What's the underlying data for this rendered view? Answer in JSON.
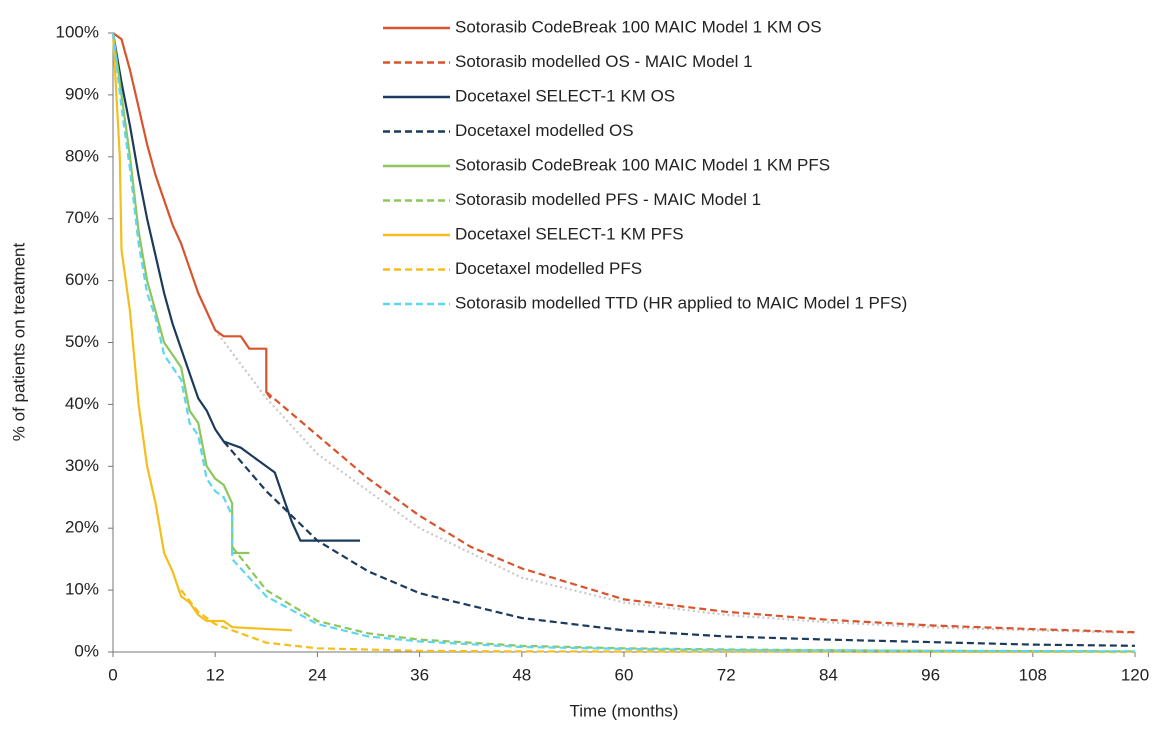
{
  "chart_data": {
    "type": "line",
    "x_label": "Time (months)",
    "y_label": "% of patients on treatment",
    "xlim": [
      0,
      120
    ],
    "xticks": [
      0,
      12,
      24,
      36,
      48,
      60,
      72,
      84,
      96,
      108,
      120
    ],
    "ylim": [
      0,
      100
    ],
    "yticks": [
      {
        "value": 0,
        "label": "0%"
      },
      {
        "value": 10,
        "label": "10%"
      },
      {
        "value": 20,
        "label": "20%"
      },
      {
        "value": 30,
        "label": "30%"
      },
      {
        "value": 40,
        "label": "40%"
      },
      {
        "value": 50,
        "label": "50%"
      },
      {
        "value": 60,
        "label": "60%"
      },
      {
        "value": 70,
        "label": "70%"
      },
      {
        "value": 80,
        "label": "80%"
      },
      {
        "value": 90,
        "label": "90%"
      },
      {
        "value": 100,
        "label": "100%"
      }
    ],
    "grid": false,
    "series": [
      {
        "color": "#c8c8c8",
        "dash": "dot",
        "x": [
          12,
          18,
          24,
          30,
          36,
          48,
          60,
          72,
          84,
          96,
          108,
          120
        ],
        "values": [
          52,
          41,
          32,
          26,
          20,
          12,
          8,
          6,
          4.8,
          4,
          3.5,
          3.1
        ]
      },
      {
        "name": "Sotorasib CodeBreak 100 MAIC Model 1 KM OS",
        "color": "#d9532c",
        "dash": "solid",
        "x": [
          0,
          1,
          2,
          3,
          4,
          5,
          6,
          7,
          8,
          9,
          10,
          11,
          12,
          13,
          15,
          16,
          18,
          18,
          18.5
        ],
        "values": [
          100,
          99,
          94,
          88,
          82,
          77,
          73,
          69,
          66,
          62,
          58,
          55,
          52,
          51,
          51,
          49,
          49,
          42,
          41
        ]
      },
      {
        "name": "Sotorasib modelled OS - MAIC Model 1",
        "color": "#d9532c",
        "dash": "dash",
        "x": [
          18,
          24,
          30,
          36,
          42,
          48,
          60,
          72,
          84,
          96,
          108,
          120
        ],
        "values": [
          42,
          35,
          28,
          22,
          17,
          13.5,
          8.5,
          6.5,
          5.2,
          4.3,
          3.7,
          3.2
        ]
      },
      {
        "name": "Docetaxel SELECT-1 KM OS",
        "color": "#1b3a5c",
        "dash": "solid",
        "x": [
          0,
          1,
          2,
          3,
          4,
          5,
          6,
          7,
          8,
          9,
          10,
          11,
          12,
          13,
          15,
          17,
          19,
          20,
          21,
          22,
          29
        ],
        "values": [
          100,
          92,
          85,
          77,
          70,
          64,
          58,
          53,
          49,
          45,
          41,
          39,
          36,
          34,
          33,
          31,
          29,
          25,
          21,
          18,
          18
        ]
      },
      {
        "name": "Docetaxel modelled OS",
        "color": "#1b3a5c",
        "dash": "dash",
        "x": [
          13,
          18,
          24,
          30,
          36,
          48,
          60,
          72,
          84,
          96,
          108,
          120
        ],
        "values": [
          34,
          26,
          18,
          13,
          9.5,
          5.5,
          3.5,
          2.5,
          2,
          1.6,
          1.2,
          1
        ]
      },
      {
        "name": "Sotorasib CodeBreak 100 MAIC Model 1 KM PFS",
        "color": "#8dc65a",
        "dash": "solid",
        "x": [
          0,
          1,
          2,
          3,
          4,
          5,
          6,
          7,
          8,
          9,
          10,
          11,
          12,
          13,
          14,
          14,
          16
        ],
        "values": [
          100,
          90,
          80,
          68,
          60,
          55,
          50,
          48,
          46,
          39,
          37,
          30,
          28,
          27,
          24,
          16,
          16
        ]
      },
      {
        "name": "Sotorasib modelled PFS - MAIC Model 1",
        "color": "#8dc65a",
        "dash": "dash",
        "x": [
          14,
          18,
          24,
          30,
          36,
          48,
          60,
          72,
          96,
          120
        ],
        "values": [
          17,
          10,
          5,
          3,
          2,
          1,
          0.6,
          0.4,
          0.2,
          0.1
        ]
      },
      {
        "name": "Docetaxel SELECT-1 KM PFS",
        "color": "#f5be1a",
        "dash": "solid",
        "x": [
          0,
          0.8,
          1,
          2,
          3,
          4,
          5,
          6,
          7,
          8,
          9,
          10,
          11,
          13,
          14,
          21
        ],
        "values": [
          100,
          80,
          65,
          55,
          40,
          30,
          24,
          16,
          13,
          9,
          8,
          6,
          5,
          5,
          4,
          3.5
        ]
      },
      {
        "name": "Docetaxel modelled PFS",
        "color": "#f5be1a",
        "dash": "dash",
        "x": [
          8,
          10,
          12,
          18,
          24,
          36,
          48,
          120
        ],
        "values": [
          10,
          6.5,
          4.5,
          1.5,
          0.6,
          0.2,
          0.1,
          0
        ]
      },
      {
        "name": "Sotorasib modelled TTD (HR applied to MAIC Model 1 PFS)",
        "color": "#5dd6f2",
        "dash": "dash",
        "x": [
          0,
          1,
          2,
          3,
          4,
          5,
          6,
          7,
          8,
          9,
          10,
          11,
          12,
          13,
          14,
          14,
          18,
          24,
          30,
          36,
          48,
          60,
          72,
          96,
          120
        ],
        "values": [
          100,
          88,
          78,
          66,
          58,
          54,
          48,
          46,
          44,
          37,
          35,
          28,
          26,
          25,
          22,
          15,
          9,
          4.5,
          2.5,
          1.7,
          0.8,
          0.5,
          0.3,
          0.2,
          0.1
        ]
      }
    ]
  }
}
